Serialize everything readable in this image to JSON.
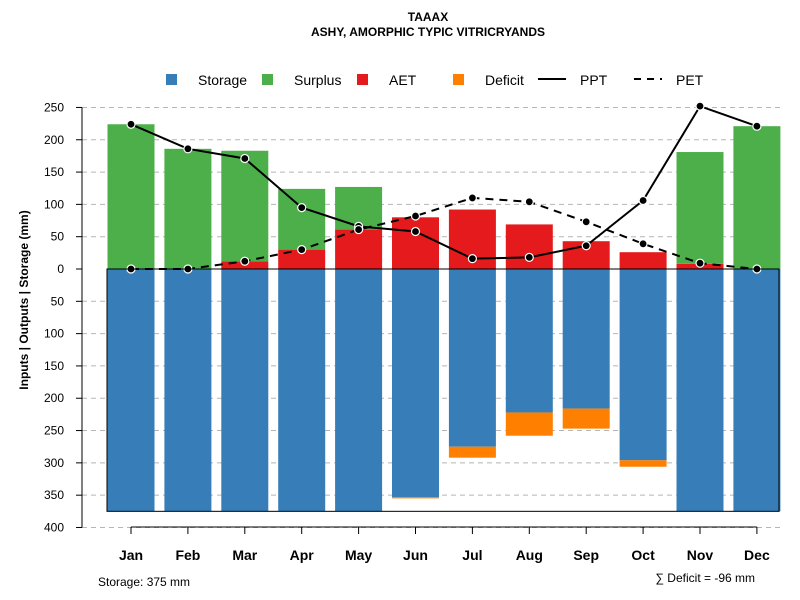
{
  "chart_data": {
    "type": "bar",
    "title": "TAAAX",
    "subtitle": "ASHY, AMORPHIC TYPIC VITRICRYANDS",
    "ylabel": "Inputs | Outputs | Storage     (mm)",
    "ylim": [
      -400,
      275
    ],
    "yticks": [
      250,
      200,
      150,
      100,
      50,
      0,
      -50,
      -100,
      -150,
      -200,
      -250,
      -300,
      -350,
      -400
    ],
    "ytick_labels": [
      "250",
      "200",
      "150",
      "100",
      "50",
      "0",
      "50",
      "100",
      "150",
      "200",
      "250",
      "300",
      "350",
      "400"
    ],
    "grid": true,
    "categories": [
      "Jan",
      "Feb",
      "Mar",
      "Apr",
      "May",
      "Jun",
      "Jul",
      "Aug",
      "Sep",
      "Oct",
      "Nov",
      "Dec"
    ],
    "storage_capacity": -375,
    "series": [
      {
        "name": "Storage",
        "kind": "bar",
        "color": "#377EB8",
        "values": [
          -375,
          -375,
          -375,
          -375,
          -375,
          -353,
          -275,
          -222,
          -216,
          -296,
          -375,
          -375
        ]
      },
      {
        "name": "Surplus",
        "kind": "bar",
        "color": "#4DAF4A",
        "values": [
          224,
          186,
          171,
          94,
          66,
          0,
          0,
          0,
          0,
          0,
          173,
          221
        ]
      },
      {
        "name": "AET",
        "kind": "bar",
        "color": "#E41A1C",
        "values": [
          0,
          0,
          12,
          30,
          61,
          80,
          92,
          69,
          43,
          26,
          8,
          0
        ]
      },
      {
        "name": "Deficit",
        "kind": "bar",
        "color": "#FF7F00",
        "values": [
          0,
          0,
          0,
          0,
          0,
          -2,
          -17,
          -36,
          -31,
          -10,
          0,
          0
        ]
      },
      {
        "name": "PPT",
        "kind": "line",
        "style": "solid",
        "color": "#000000",
        "values": [
          224,
          186,
          171,
          95,
          66,
          58,
          16,
          18,
          36,
          106,
          252,
          221
        ]
      },
      {
        "name": "PET",
        "kind": "line",
        "style": "dashed",
        "color": "#000000",
        "values": [
          0,
          0,
          12,
          30,
          61,
          82,
          110,
          104,
          73,
          39,
          9,
          0
        ]
      }
    ],
    "legend_position": "top",
    "storage_note": "Storage: 375 mm",
    "deficit_note": "∑ Deficit = -96 mm"
  }
}
